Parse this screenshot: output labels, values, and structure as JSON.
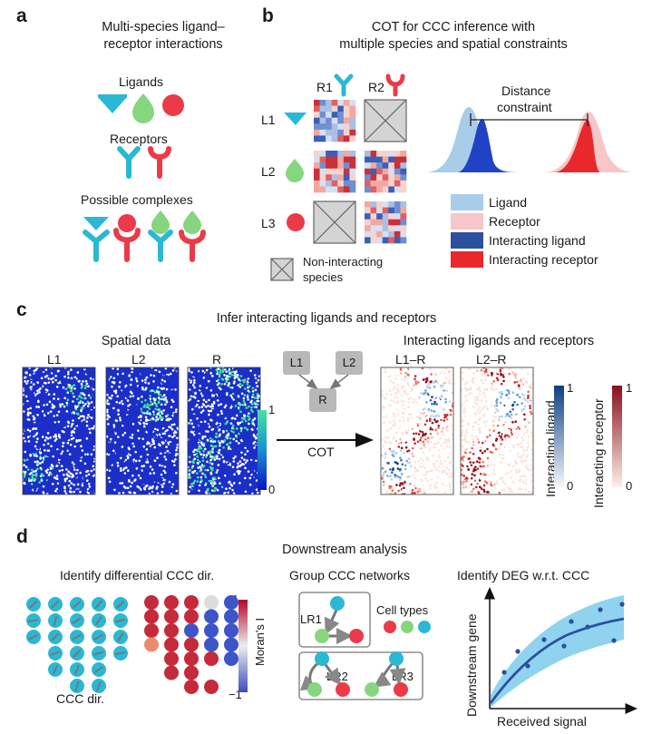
{
  "panel_a": {
    "letter": "a",
    "title_line1": "Multi-species ligand–",
    "title_line2": "receptor interactions",
    "ligands_label": "Ligands",
    "receptors_label": "Receptors",
    "complexes_label": "Possible complexes"
  },
  "panel_b": {
    "letter": "b",
    "title_line1": "COT for CCC inference with",
    "title_line2": "multiple species and spatial constraints",
    "col_labels": [
      "R1",
      "R2"
    ],
    "row_labels": [
      "L1",
      "L2",
      "L3"
    ],
    "noninteracting_line1": "Non-interacting",
    "noninteracting_line2": "species",
    "distance_line1": "Distance",
    "distance_line2": "constraint",
    "legend": [
      {
        "label": "Ligand",
        "color": "#a9cde9"
      },
      {
        "label": "Receptor",
        "color": "#f6c6c9"
      },
      {
        "label": "Interacting ligand",
        "color": "#2c4f9f"
      },
      {
        "label": "Interacting receptor",
        "color": "#e8282b"
      }
    ]
  },
  "panel_c": {
    "letter": "c",
    "title": "Infer interacting ligands and receptors",
    "spatial_title": "Spatial data",
    "maps": [
      "L1",
      "L2",
      "R"
    ],
    "scale_max": "1",
    "scale_min": "0",
    "network_nodes": [
      "L1",
      "L2",
      "R"
    ],
    "arrow_label": "COT",
    "interact_title": "Interacting ligands and receptors",
    "interact_maps": [
      "L1–R",
      "L2–R"
    ],
    "lig_bar_label": "Interacting ligand",
    "rec_bar_label": "Interacting receptor",
    "lig_max": "1",
    "lig_min": "0",
    "rec_max": "1",
    "rec_min": "0"
  },
  "panel_d": {
    "letter": "d",
    "title": "Downstream analysis",
    "diff_title": "Identify differential CCC dir.",
    "ccc_dir_label": "CCC dir.",
    "morans_label": "Moran's I",
    "morans_max": "1",
    "morans_min": "−1",
    "group_title": "Group CCC networks",
    "lr_labels": [
      "LR1",
      "LR2",
      "LR3"
    ],
    "cell_types_label": "Cell types",
    "deg_title": "Identify DEG w.r.t. CCC",
    "y_axis": "Downstream gene",
    "x_axis": "Received signal"
  },
  "colors": {
    "cyan": "#2bb8d4",
    "green": "#86d67f",
    "red": "#ec3a48",
    "dot_field": "#1b2fc8",
    "dot_hot": "#47e39c"
  }
}
